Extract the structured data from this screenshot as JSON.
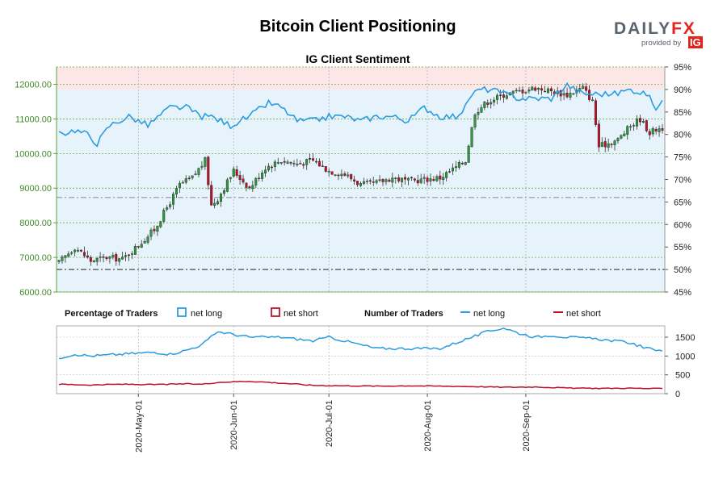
{
  "header": {
    "title": "Bitcoin Client Positioning",
    "subtitle": "IG Client Sentiment"
  },
  "logo": {
    "brand_part1": "DAILY",
    "brand_part2": "FX",
    "provided_by": "provided by",
    "ig": "IG"
  },
  "legend": {
    "percentage_title": "Percentage of Traders",
    "pct_net_long": "net long",
    "pct_net_short": "net short",
    "number_title": "Number of Traders",
    "num_net_long": "net long",
    "num_net_short": "net short"
  },
  "colors": {
    "net_long": "#2b9be0",
    "net_short": "#c0102a",
    "candle_up": "#2c9a3b",
    "candle_down": "#c0102a",
    "grid": "#5aa03c",
    "long_band": "#e6f3fb",
    "short_band": "#fce6e6"
  },
  "chart_data": [
    {
      "type": "candlestick",
      "name": "price",
      "ylim": [
        6000,
        12500
      ],
      "y_ticks": [
        "6000.00",
        "7000.00",
        "8000.00",
        "9000.00",
        "10000.00",
        "11000.00",
        "12000.00"
      ],
      "pct_ylim": [
        45,
        95
      ],
      "pct_ticks": [
        "45%",
        "50%",
        "55%",
        "60%",
        "65%",
        "70%",
        "75%",
        "80%",
        "85%",
        "90%",
        "95%"
      ],
      "x_ticks": [
        "2020-May-01",
        "2020-Jun-01",
        "2020-Jul-01",
        "2020-Aug-01",
        "2020-Sep-01"
      ],
      "reference_lines": [
        50,
        66
      ],
      "net_long_pct_anchors": [
        [
          0,
          80
        ],
        [
          5,
          81
        ],
        [
          9,
          80
        ],
        [
          12,
          78
        ],
        [
          16,
          82
        ],
        [
          22,
          84
        ],
        [
          28,
          82
        ],
        [
          35,
          86
        ],
        [
          40,
          86
        ],
        [
          45,
          84
        ],
        [
          48,
          84
        ],
        [
          54,
          82
        ],
        [
          60,
          84
        ],
        [
          66,
          87
        ],
        [
          70,
          86
        ],
        [
          75,
          83
        ],
        [
          80,
          83
        ],
        [
          85,
          84
        ],
        [
          90,
          84
        ],
        [
          95,
          83
        ],
        [
          100,
          84
        ],
        [
          105,
          84
        ],
        [
          110,
          83
        ],
        [
          115,
          86
        ],
        [
          120,
          84
        ],
        [
          125,
          84
        ],
        [
          128,
          86
        ],
        [
          130,
          89
        ],
        [
          133,
          90
        ],
        [
          136,
          90
        ],
        [
          140,
          89
        ],
        [
          145,
          88
        ],
        [
          150,
          88
        ],
        [
          155,
          88
        ],
        [
          160,
          91
        ],
        [
          165,
          89
        ],
        [
          170,
          89
        ],
        [
          175,
          89
        ],
        [
          180,
          90
        ],
        [
          185,
          89
        ],
        [
          188,
          86
        ],
        [
          190,
          87
        ]
      ],
      "close_anchors": [
        [
          0,
          6850
        ],
        [
          5,
          7300
        ],
        [
          10,
          6900
        ],
        [
          15,
          7000
        ],
        [
          20,
          6950
        ],
        [
          25,
          7350
        ],
        [
          30,
          7800
        ],
        [
          35,
          8600
        ],
        [
          38,
          9100
        ],
        [
          42,
          9300
        ],
        [
          46,
          9800
        ],
        [
          48,
          8500
        ],
        [
          50,
          8700
        ],
        [
          55,
          9500
        ],
        [
          60,
          9000
        ],
        [
          65,
          9600
        ],
        [
          70,
          9800
        ],
        [
          75,
          9700
        ],
        [
          80,
          9800
        ],
        [
          85,
          9500
        ],
        [
          90,
          9400
        ],
        [
          95,
          9100
        ],
        [
          100,
          9150
        ],
        [
          105,
          9300
        ],
        [
          110,
          9200
        ],
        [
          115,
          9250
        ],
        [
          120,
          9300
        ],
        [
          125,
          9600
        ],
        [
          128,
          9800
        ],
        [
          131,
          11200
        ],
        [
          135,
          11500
        ],
        [
          140,
          11700
        ],
        [
          145,
          11800
        ],
        [
          150,
          11900
        ],
        [
          155,
          11800
        ],
        [
          160,
          11700
        ],
        [
          165,
          11900
        ],
        [
          168,
          11500
        ],
        [
          170,
          10200
        ],
        [
          173,
          10300
        ],
        [
          176,
          10400
        ],
        [
          180,
          10800
        ],
        [
          183,
          11000
        ],
        [
          186,
          10600
        ],
        [
          188,
          10700
        ],
        [
          190,
          10750
        ]
      ],
      "n_days": 191,
      "x_tick_days": [
        25,
        55,
        85,
        116,
        147
      ]
    },
    {
      "type": "line",
      "name": "number_of_traders",
      "ylim": [
        0,
        1800
      ],
      "y_ticks": [
        "0",
        "500",
        "1000",
        "1500"
      ],
      "series": [
        {
          "name": "net long",
          "anchors": [
            [
              0,
              950
            ],
            [
              5,
              1050
            ],
            [
              10,
              1000
            ],
            [
              20,
              1050
            ],
            [
              30,
              1100
            ],
            [
              35,
              1050
            ],
            [
              40,
              1150
            ],
            [
              45,
              1300
            ],
            [
              50,
              1650
            ],
            [
              60,
              1500
            ],
            [
              70,
              1500
            ],
            [
              80,
              1400
            ],
            [
              85,
              1500
            ],
            [
              90,
              1400
            ],
            [
              100,
              1200
            ],
            [
              110,
              1200
            ],
            [
              120,
              1200
            ],
            [
              130,
              1500
            ],
            [
              135,
              1650
            ],
            [
              140,
              1750
            ],
            [
              145,
              1600
            ],
            [
              150,
              1500
            ],
            [
              155,
              1550
            ],
            [
              160,
              1500
            ],
            [
              170,
              1450
            ],
            [
              175,
              1400
            ],
            [
              180,
              1350
            ],
            [
              185,
              1200
            ],
            [
              190,
              1150
            ]
          ]
        },
        {
          "name": "net short",
          "anchors": [
            [
              0,
              250
            ],
            [
              10,
              230
            ],
            [
              20,
              250
            ],
            [
              30,
              240
            ],
            [
              40,
              260
            ],
            [
              45,
              250
            ],
            [
              50,
              300
            ],
            [
              60,
              330
            ],
            [
              70,
              280
            ],
            [
              80,
              220
            ],
            [
              90,
              210
            ],
            [
              100,
              200
            ],
            [
              110,
              210
            ],
            [
              120,
              200
            ],
            [
              130,
              190
            ],
            [
              135,
              180
            ],
            [
              140,
              170
            ],
            [
              150,
              180
            ],
            [
              160,
              150
            ],
            [
              170,
              140
            ],
            [
              180,
              145
            ],
            [
              190,
              130
            ]
          ]
        }
      ]
    }
  ]
}
